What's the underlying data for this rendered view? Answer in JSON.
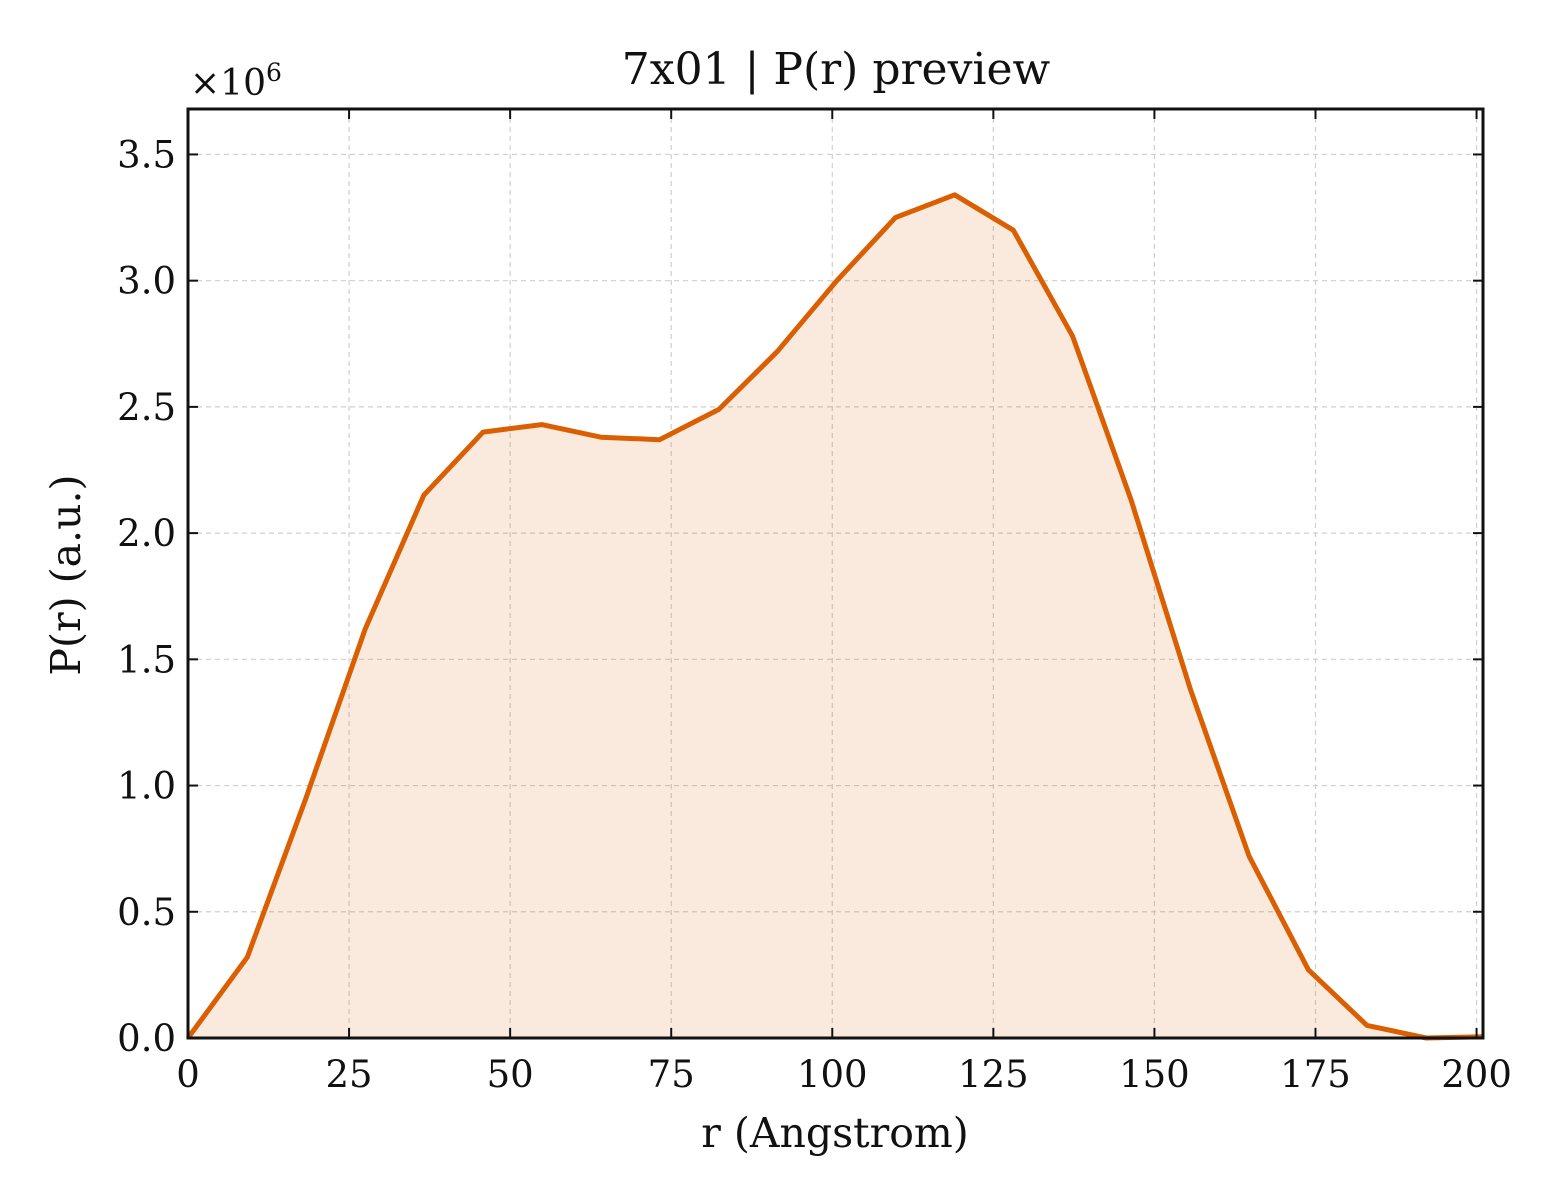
{
  "chart_data": {
    "type": "area",
    "title": "7x01 | P(r) preview",
    "xlabel": "r (Angstrom)",
    "ylabel": "P(r) (a.u.)",
    "y_multiplier_label": "×10",
    "y_multiplier_exponent": "6",
    "xlim": [
      0,
      201
    ],
    "ylim": [
      0,
      3.68
    ],
    "xticks": [
      0,
      25,
      50,
      75,
      100,
      125,
      150,
      175,
      200
    ],
    "yticks": [
      0.0,
      0.5,
      1.0,
      1.5,
      2.0,
      2.5,
      3.0,
      3.5
    ],
    "xtick_labels": [
      "0",
      "25",
      "50",
      "75",
      "100",
      "125",
      "150",
      "175",
      "200"
    ],
    "ytick_labels": [
      "0.0",
      "0.5",
      "1.0",
      "1.5",
      "2.0",
      "2.5",
      "3.0",
      "3.5"
    ],
    "grid": true,
    "series": [
      {
        "x": [
          0,
          9.2,
          18.3,
          27.5,
          36.6,
          45.8,
          54.9,
          64.1,
          73.2,
          82.4,
          91.5,
          100.7,
          109.8,
          119.0,
          128.1,
          137.3,
          146.4,
          155.6,
          164.7,
          173.9,
          183.0,
          192.2,
          201.0
        ],
        "y": [
          0.0,
          0.32,
          0.95,
          1.62,
          2.15,
          2.4,
          2.43,
          2.38,
          2.37,
          2.49,
          2.72,
          3.0,
          3.25,
          3.34,
          3.2,
          2.78,
          2.13,
          1.38,
          0.72,
          0.27,
          0.05,
          0.0,
          0.005
        ],
        "color": "#d95f02",
        "fill_color": "#d95f02",
        "fill_opacity": 0.13
      }
    ]
  }
}
